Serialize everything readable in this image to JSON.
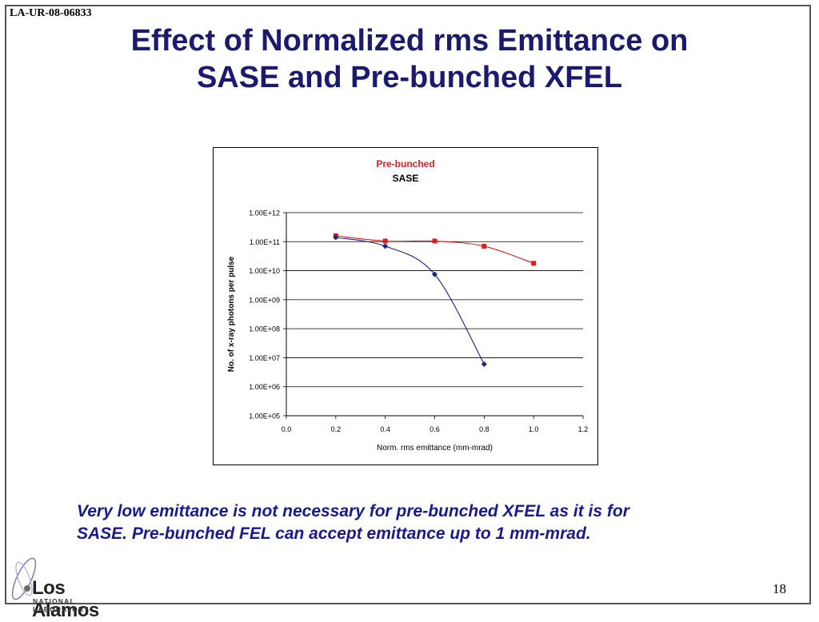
{
  "slide": {
    "report_id": "LA-UR-08-06833",
    "title_line1": "Effect of Normalized rms Emittance on",
    "title_line2": "SASE and Pre-bunched XFEL",
    "caption_line1": "Very low emittance is not necessary for pre-bunched XFEL as it is for",
    "caption_line2": "SASE. Pre-bunched FEL can accept emittance up to 1 mm-mrad.",
    "page_number": "18",
    "logo_text": "Los Alamos",
    "logo_subtext": "NATIONAL LABORATORY"
  },
  "chart_data": {
    "type": "line",
    "xlabel": "Norm. rms emittance (mm-mrad)",
    "ylabel": "No. of x-ray photons per pulse",
    "xlim": [
      0.0,
      1.2
    ],
    "x_ticks": [
      "0.0",
      "0.2",
      "0.4",
      "0.6",
      "0.8",
      "1.0",
      "1.2"
    ],
    "y_log_scale": true,
    "ylim": [
      100000,
      1000000000000
    ],
    "y_ticks": [
      "1.00E+05",
      "1.00E+06",
      "1.00E+07",
      "1.00E+08",
      "1.00E+09",
      "1.00E+10",
      "1.00E+11",
      "1.00E+12"
    ],
    "horizontal_grid": true,
    "legend_position": "top-center",
    "series": [
      {
        "name": "Pre-bunched",
        "color": "#e31a1c",
        "marker": "square",
        "points": [
          {
            "x": 0.2,
            "y": 160000000000
          },
          {
            "x": 0.4,
            "y": 105000000000
          },
          {
            "x": 0.6,
            "y": 105000000000
          },
          {
            "x": 0.8,
            "y": 70000000000
          },
          {
            "x": 1.0,
            "y": 18000000000
          }
        ]
      },
      {
        "name": "SASE",
        "color": "#1a237e",
        "marker": "diamond",
        "points": [
          {
            "x": 0.2,
            "y": 140000000000
          },
          {
            "x": 0.4,
            "y": 70000000000
          },
          {
            "x": 0.6,
            "y": 7500000000
          },
          {
            "x": 0.8,
            "y": 6000000
          }
        ]
      }
    ]
  }
}
